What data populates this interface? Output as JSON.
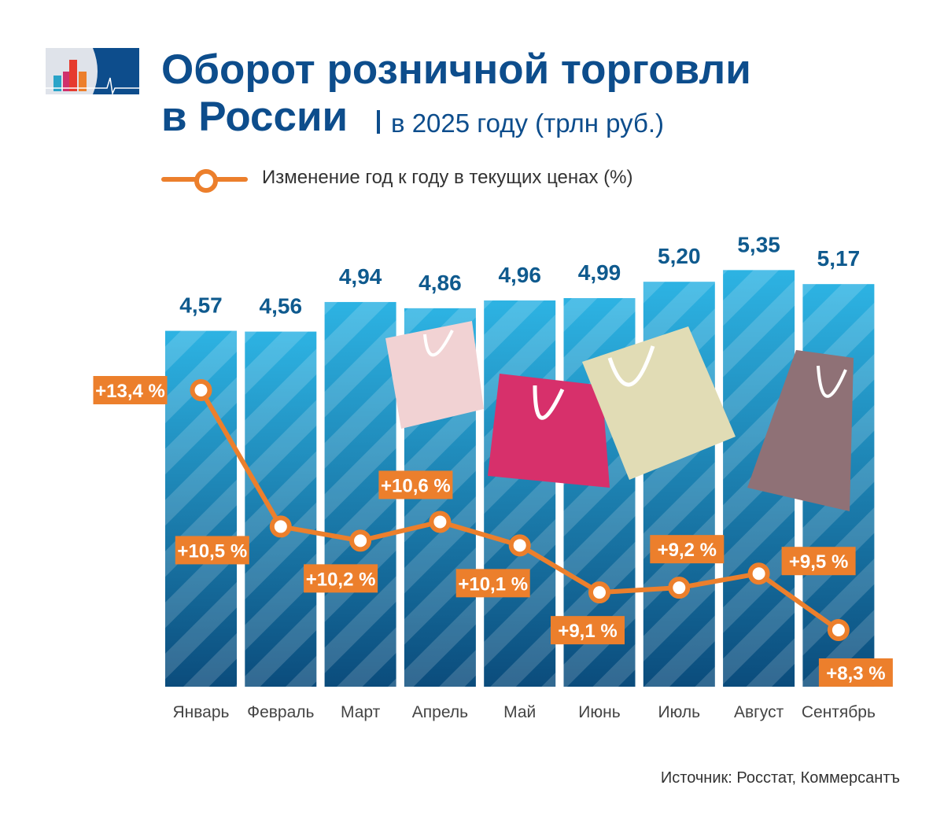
{
  "header": {
    "title_line1": "Оборот розничной торговли",
    "title_line2": "в России",
    "subtitle": "в 2025 году (трлн руб.)"
  },
  "legend": {
    "line_label": "Изменение год к году в текущих ценах (%)"
  },
  "source": "Источник: Росстат, Коммерсантъ",
  "colors": {
    "title": "#0d4d8c",
    "bar_top": "#2db3e3",
    "bar_bottom": "#0b4c7c",
    "line": "#ec7f2c",
    "value_label": "#0f5a8e"
  },
  "chart_data": {
    "type": "bar",
    "categories": [
      "Январь",
      "Февраль",
      "Март",
      "Апрель",
      "Май",
      "Июнь",
      "Июль",
      "Август",
      "Сентябрь"
    ],
    "series": [
      {
        "type": "bar",
        "values": [
          4.57,
          4.56,
          4.94,
          4.86,
          4.96,
          4.99,
          5.2,
          5.35,
          5.17
        ],
        "labels": [
          "4,57",
          "4,56",
          "4,94",
          "4,86",
          "4,96",
          "4,99",
          "5,20",
          "5,35",
          "5,17"
        ]
      },
      {
        "type": "line",
        "name": "Изменение год к году в текущих ценах (%)",
        "values": [
          13.4,
          10.5,
          10.2,
          10.6,
          10.1,
          9.1,
          9.2,
          9.5,
          8.3
        ],
        "labels": [
          "+13,4 %",
          "+10,5 %",
          "+10,2 %",
          "+10,6 %",
          "+10,1 %",
          "+9,1 %",
          "+9,2 %",
          "+9,5 %",
          "+8,3 %"
        ]
      }
    ],
    "ylabel": "трлн руб.",
    "grid": false,
    "legend": "top-left"
  }
}
